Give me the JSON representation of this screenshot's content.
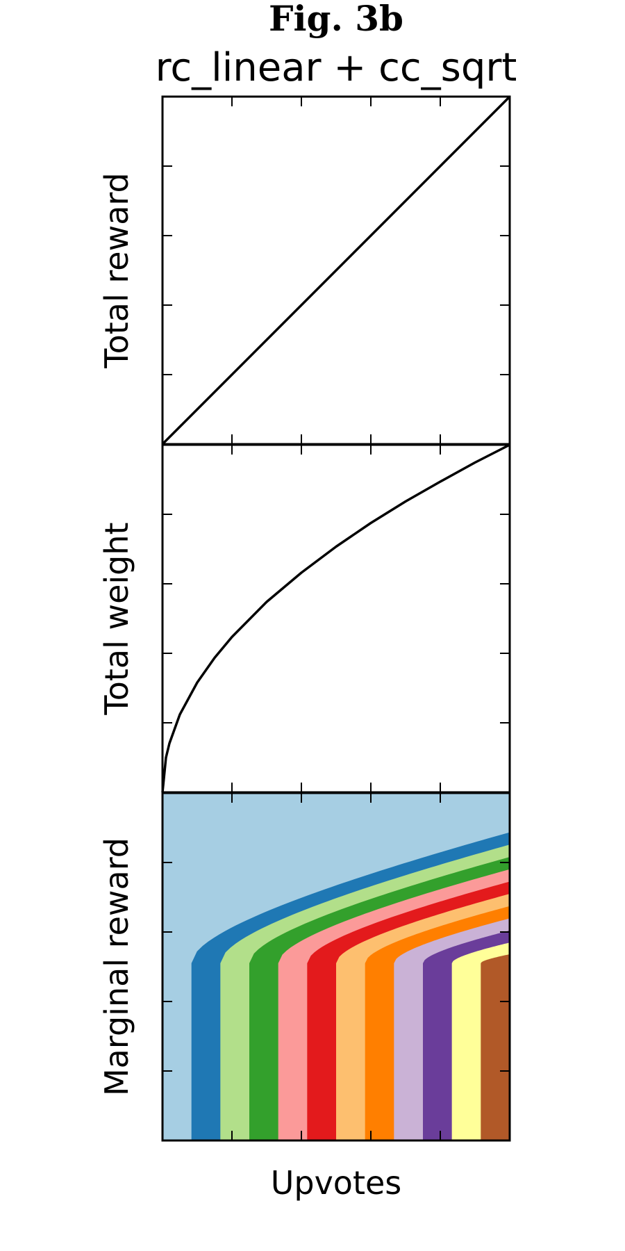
{
  "figure": {
    "label": "Fig. 3b",
    "title": "rc_linear + cc_sqrt"
  },
  "chart_data": [
    {
      "type": "line",
      "panel": "top",
      "ylabel": "Total reward",
      "xlabel": "",
      "series": [
        {
          "x": [
            0,
            0.1,
            0.2,
            0.3,
            0.4,
            0.5,
            0.6,
            0.7,
            0.8,
            0.9,
            1.0
          ],
          "y": [
            0,
            0.1,
            0.2,
            0.3,
            0.4,
            0.5,
            0.6,
            0.7,
            0.8,
            0.9,
            1.0
          ]
        }
      ],
      "xlim": [
        0,
        1
      ],
      "ylim": [
        0,
        1
      ],
      "xticks": 5,
      "yticks": 5,
      "tick_labels": false,
      "grid": false
    },
    {
      "type": "line",
      "panel": "middle",
      "ylabel": "Total weight",
      "xlabel": "",
      "series": [
        {
          "x": [
            0,
            0.01,
            0.02,
            0.05,
            0.1,
            0.15,
            0.2,
            0.3,
            0.4,
            0.5,
            0.6,
            0.7,
            0.8,
            0.9,
            1.0
          ],
          "y": [
            0,
            0.1,
            0.141,
            0.224,
            0.316,
            0.387,
            0.447,
            0.548,
            0.632,
            0.707,
            0.775,
            0.837,
            0.894,
            0.949,
            1.0
          ]
        }
      ],
      "xlim": [
        0,
        1
      ],
      "ylim": [
        0,
        1
      ],
      "xticks": 5,
      "yticks": 5,
      "tick_labels": false,
      "grid": false
    },
    {
      "type": "heatmap",
      "panel": "bottom",
      "ylabel": "Marginal reward",
      "xlabel": "Upvotes",
      "colormap": [
        "#a6cee3",
        "#1f78b4",
        "#b2df8a",
        "#33a02c",
        "#fb9a99",
        "#e31a1c",
        "#fdbf6f",
        "#ff7f00",
        "#cab2d6",
        "#6a3d9a",
        "#ffff99",
        "#b15928"
      ],
      "xlim": [
        0,
        1
      ],
      "ylim": [
        0,
        1
      ],
      "xticks": 5,
      "yticks": 5,
      "tick_labels": false,
      "grid": false
    }
  ]
}
